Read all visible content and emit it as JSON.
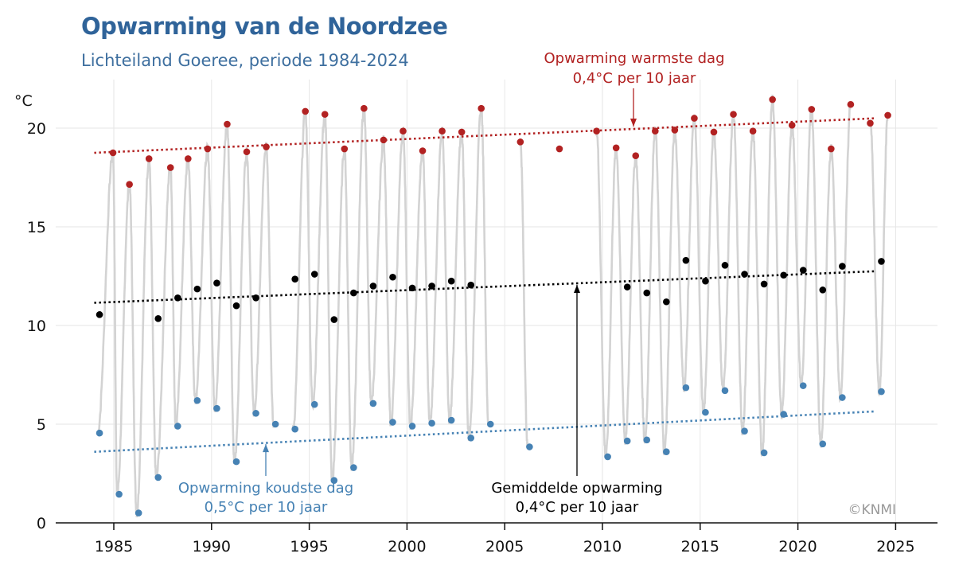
{
  "chart_data": {
    "type": "scatter",
    "title": "Opwarming van de Noordzee",
    "subtitle": "Lichteiland Goeree, periode 1984-2024",
    "ylabel": "°C",
    "xlabel": "",
    "xlim": [
      1982.3,
      2027.1
    ],
    "ylim": [
      0,
      22.5
    ],
    "xticks": [
      "1985",
      "1990",
      "1995",
      "2000",
      "2005",
      "2010",
      "2015",
      "2020",
      "2025"
    ],
    "xtick_values": [
      1985,
      1990,
      1995,
      2000,
      2005,
      2010,
      2015,
      2020,
      2025
    ],
    "yticks": [
      "0",
      "5",
      "10",
      "15",
      "20"
    ],
    "ytick_values": [
      0,
      5,
      10,
      15,
      20
    ],
    "grid": true,
    "colors": {
      "warm": "#b22222",
      "mean": "#000000",
      "cold": "#4682b4",
      "daily": "#d3d3d3",
      "title": "#2f6399"
    },
    "series": [
      {
        "name": "Warmste dag",
        "color": "#b22222",
        "points": [
          [
            1984.96,
            18.75
          ],
          [
            1985.8,
            17.15
          ],
          [
            1986.8,
            18.45
          ],
          [
            1987.9,
            18.0
          ],
          [
            1988.8,
            18.45
          ],
          [
            1989.8,
            18.95
          ],
          [
            1990.8,
            20.2
          ],
          [
            1991.8,
            18.8
          ],
          [
            1992.8,
            19.05
          ],
          [
            1994.8,
            20.85
          ],
          [
            1995.8,
            20.7
          ],
          [
            1996.8,
            18.95
          ],
          [
            1997.8,
            21.0
          ],
          [
            1998.8,
            19.4
          ],
          [
            1999.8,
            19.85
          ],
          [
            2000.8,
            18.85
          ],
          [
            2001.8,
            19.85
          ],
          [
            2002.8,
            19.8
          ],
          [
            2003.8,
            21.0
          ],
          [
            2005.8,
            19.3
          ],
          [
            2007.8,
            18.95
          ],
          [
            2009.7,
            19.85
          ],
          [
            2010.7,
            19.0
          ],
          [
            2011.7,
            18.6
          ],
          [
            2012.7,
            19.85
          ],
          [
            2013.7,
            19.9
          ],
          [
            2014.7,
            20.5
          ],
          [
            2015.7,
            19.8
          ],
          [
            2016.7,
            20.7
          ],
          [
            2017.7,
            19.85
          ],
          [
            2018.7,
            21.45
          ],
          [
            2019.7,
            20.15
          ],
          [
            2020.7,
            20.95
          ],
          [
            2021.7,
            18.95
          ],
          [
            2022.7,
            21.2
          ],
          [
            2023.7,
            20.25
          ],
          [
            2024.6,
            20.65
          ]
        ]
      },
      {
        "name": "Gemiddelde",
        "color": "#000000",
        "points": [
          [
            1984.27,
            10.55
          ],
          [
            1987.27,
            10.35
          ],
          [
            1988.27,
            11.4
          ],
          [
            1989.27,
            11.85
          ],
          [
            1990.27,
            12.15
          ],
          [
            1991.27,
            11.0
          ],
          [
            1992.27,
            11.4
          ],
          [
            1994.27,
            12.35
          ],
          [
            1995.27,
            12.6
          ],
          [
            1996.27,
            10.3
          ],
          [
            1997.27,
            11.65
          ],
          [
            1998.27,
            12.0
          ],
          [
            1999.27,
            12.45
          ],
          [
            2000.27,
            11.9
          ],
          [
            2001.27,
            12.0
          ],
          [
            2002.27,
            12.25
          ],
          [
            2003.27,
            12.05
          ],
          [
            2011.27,
            11.95
          ],
          [
            2012.27,
            11.65
          ],
          [
            2013.27,
            11.2
          ],
          [
            2014.27,
            13.3
          ],
          [
            2015.27,
            12.25
          ],
          [
            2016.27,
            13.05
          ],
          [
            2017.27,
            12.6
          ],
          [
            2018.27,
            12.1
          ],
          [
            2019.27,
            12.55
          ],
          [
            2020.27,
            12.8
          ],
          [
            2021.27,
            11.8
          ],
          [
            2022.27,
            13.0
          ],
          [
            2024.27,
            13.25
          ]
        ]
      },
      {
        "name": "Koudste dag",
        "color": "#4682b4",
        "points": [
          [
            1984.27,
            4.55
          ],
          [
            1985.27,
            1.45
          ],
          [
            1986.27,
            0.5
          ],
          [
            1987.27,
            2.3
          ],
          [
            1988.27,
            4.9
          ],
          [
            1989.27,
            6.2
          ],
          [
            1990.27,
            5.8
          ],
          [
            1991.27,
            3.1
          ],
          [
            1992.27,
            5.55
          ],
          [
            1993.27,
            5.0
          ],
          [
            1994.27,
            4.75
          ],
          [
            1995.27,
            6.0
          ],
          [
            1996.27,
            2.15
          ],
          [
            1997.27,
            2.8
          ],
          [
            1998.27,
            6.05
          ],
          [
            1999.27,
            5.1
          ],
          [
            2000.27,
            4.9
          ],
          [
            2001.27,
            5.05
          ],
          [
            2002.27,
            5.2
          ],
          [
            2003.27,
            4.3
          ],
          [
            2004.27,
            5.0
          ],
          [
            2006.27,
            3.85
          ],
          [
            2010.27,
            3.35
          ],
          [
            2011.27,
            4.15
          ],
          [
            2012.27,
            4.2
          ],
          [
            2013.27,
            3.6
          ],
          [
            2014.27,
            6.85
          ],
          [
            2015.27,
            5.6
          ],
          [
            2016.27,
            6.7
          ],
          [
            2017.27,
            4.65
          ],
          [
            2018.27,
            3.55
          ],
          [
            2019.27,
            5.5
          ],
          [
            2020.27,
            6.95
          ],
          [
            2021.27,
            4.0
          ],
          [
            2022.27,
            6.35
          ],
          [
            2024.27,
            6.65
          ]
        ]
      }
    ],
    "trends": [
      {
        "name": "warm-trend",
        "color": "#b22222",
        "from": [
          1984,
          18.75
        ],
        "to": [
          2024,
          20.5
        ]
      },
      {
        "name": "mean-trend",
        "color": "#000000",
        "from": [
          1984,
          11.15
        ],
        "to": [
          2024,
          12.75
        ]
      },
      {
        "name": "cold-trend",
        "color": "#4682b4",
        "from": [
          1984,
          3.6
        ],
        "to": [
          2024,
          5.65
        ]
      }
    ],
    "annotations": {
      "warm": {
        "line1": "Opwarming warmste dag",
        "line2": "0,4°C per 10 jaar",
        "color": "#b22222",
        "target": [
          2011.7,
          20.0
        ]
      },
      "mean": {
        "line1": "Gemiddelde opwarming",
        "line2": "0,4°C per 10 jaar",
        "color": "#000000",
        "target": [
          2008.7,
          12.3
        ]
      },
      "cold": {
        "line1": "Opwarming koudste dag",
        "line2": "0,5°C per 10 jaar",
        "color": "#4682b4",
        "target": [
          1992.8,
          4.15
        ]
      }
    },
    "credit": "©KNMI"
  }
}
